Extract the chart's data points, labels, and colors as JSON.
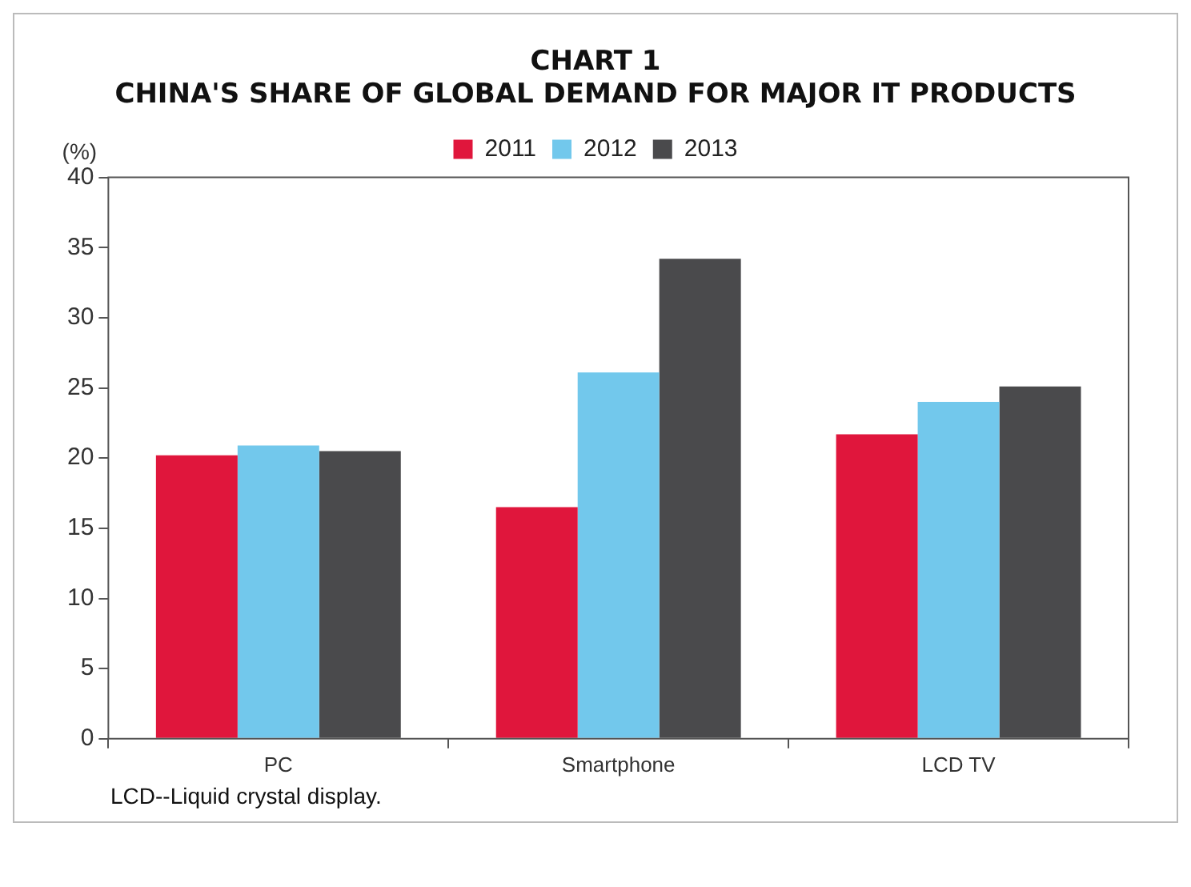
{
  "chart_data": {
    "type": "bar",
    "title": "CHART 1\nCHINA'S SHARE OF GLOBAL DEMAND FOR MAJOR IT PRODUCTS",
    "ylabel": "(%)",
    "categories": [
      "PC",
      "Smartphone",
      "LCD TV"
    ],
    "series": [
      {
        "name": "2011",
        "color": "#e0163c",
        "values": [
          20.2,
          16.5,
          21.7
        ]
      },
      {
        "name": "2012",
        "color": "#72c8ec",
        "values": [
          20.9,
          26.1,
          24.0
        ]
      },
      {
        "name": "2013",
        "color": "#4a4a4c",
        "values": [
          20.5,
          34.2,
          25.1
        ]
      }
    ],
    "ylim": [
      0,
      40
    ],
    "yticks": [
      0,
      5,
      10,
      15,
      20,
      25,
      30,
      35,
      40
    ],
    "grid": false,
    "legend": "top",
    "annotations": [
      "LCD--Liquid crystal display."
    ]
  }
}
